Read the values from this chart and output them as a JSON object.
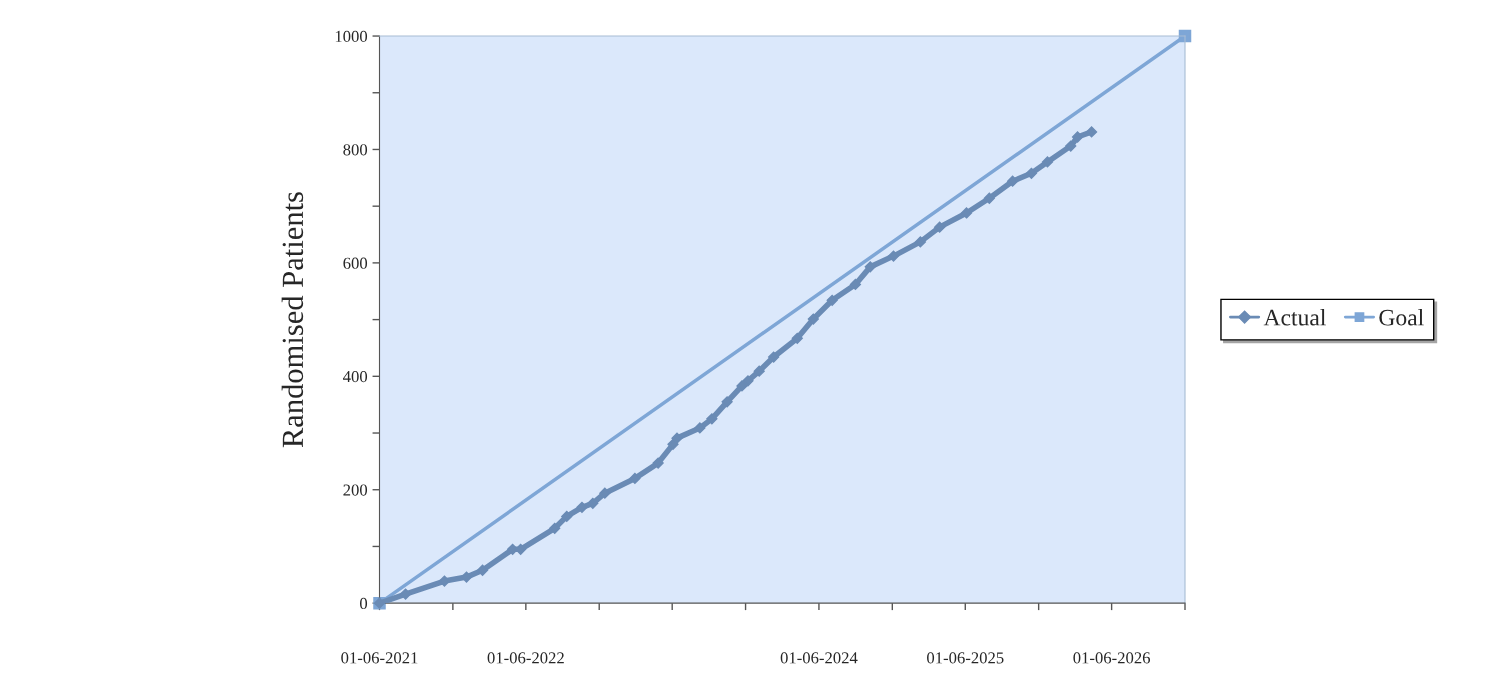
{
  "chart_data": {
    "type": "line",
    "ylabel": "Randomised Patients",
    "xlim": [
      "2021-06-01",
      "2026-12-01"
    ],
    "xticks": [
      {
        "value": "2021-06-01",
        "label": "01-06-2021"
      },
      {
        "value": "2021-12-01",
        "label": null
      },
      {
        "value": "2022-06-01",
        "label": "01-06-2022"
      },
      {
        "value": "2022-12-01",
        "label": null
      },
      {
        "value": "2023-06-01",
        "label": null
      },
      {
        "value": "2023-12-01",
        "label": null
      },
      {
        "value": "2024-06-01",
        "label": "01-06-2024"
      },
      {
        "value": "2024-12-01",
        "label": null
      },
      {
        "value": "2025-06-01",
        "label": "01-06-2025"
      },
      {
        "value": "2025-12-01",
        "label": null
      },
      {
        "value": "2026-06-01",
        "label": "01-06-2026"
      },
      {
        "value": "2026-12-01",
        "label": null
      }
    ],
    "ylim": [
      0,
      1000
    ],
    "yticks": [
      0,
      {
        "value": 100,
        "label": null
      },
      200,
      {
        "value": 300,
        "label": null
      },
      400,
      {
        "value": 500,
        "label": null
      },
      600,
      {
        "value": 700,
        "label": null
      },
      800,
      {
        "value": 900,
        "label": null
      },
      1000
    ],
    "grid": false,
    "legend": "right",
    "series": [
      {
        "name": "Actual",
        "color": "#6a8bb5",
        "marker": "diamond",
        "x": [
          "2021-06-01",
          "2021-08-05",
          "2021-11-10",
          "2022-01-04",
          "2022-02-13",
          "2022-04-29",
          "2022-05-19",
          "2022-08-12",
          "2022-09-11",
          "2022-10-19",
          "2022-11-15",
          "2022-12-15",
          "2023-02-28",
          "2023-04-27",
          "2023-06-03",
          "2023-06-13",
          "2023-08-09",
          "2023-09-08",
          "2023-10-16",
          "2023-11-22",
          "2023-12-07",
          "2024-01-04",
          "2024-02-09",
          "2024-04-08",
          "2024-05-18",
          "2024-07-04",
          "2024-08-31",
          "2024-10-07",
          "2024-12-04",
          "2025-02-09",
          "2025-03-29",
          "2025-06-04",
          "2025-07-31",
          "2025-09-27",
          "2025-11-13",
          "2025-12-23",
          "2026-02-19",
          "2026-03-08",
          "2026-04-12"
        ],
        "values": [
          0,
          16,
          39,
          46,
          58,
          95,
          95,
          132,
          153,
          169,
          176,
          194,
          220,
          247,
          280,
          291,
          309,
          325,
          355,
          383,
          392,
          409,
          434,
          467,
          501,
          534,
          562,
          593,
          612,
          637,
          663,
          688,
          714,
          744,
          758,
          778,
          806,
          822,
          831
        ]
      },
      {
        "name": "Goal",
        "color": "#7ea6d6",
        "marker": "square",
        "x": [
          "2021-06-01",
          "2026-12-01"
        ],
        "values": [
          0,
          1000
        ]
      }
    ]
  }
}
